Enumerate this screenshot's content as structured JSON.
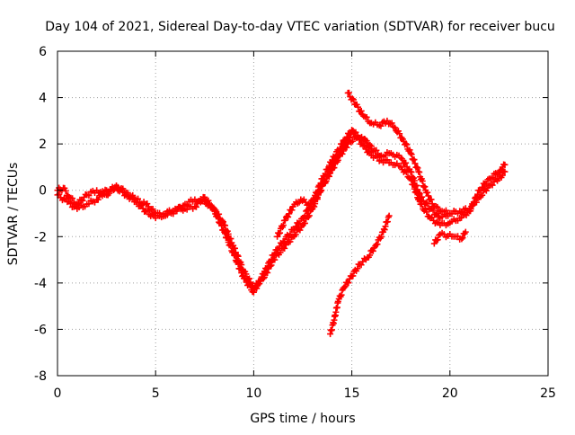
{
  "chart_data": {
    "type": "scatter",
    "title": "Day 104 of 2021, Sidereal Day-to-day VTEC variation (SDTVAR) for receiver bucu",
    "xlabel": "GPS time / hours",
    "ylabel": "SDTVAR / TECUs",
    "xlim": [
      0,
      25
    ],
    "ylim": [
      -8,
      6
    ],
    "xticks": [
      0,
      5,
      10,
      15,
      20,
      25
    ],
    "yticks": [
      -8,
      -6,
      -4,
      -2,
      0,
      2,
      4,
      6
    ],
    "grid": true,
    "legend": "none",
    "marker": "+",
    "color": "#ff0000",
    "series": [
      {
        "x": [
          0,
          0.3,
          0.6,
          1.0,
          1.5,
          2.0,
          2.5,
          3.0,
          3.5,
          4.0,
          4.5,
          5.0,
          5.5,
          6.0,
          6.5,
          7.0,
          7.5,
          8.0,
          8.5,
          9.0,
          9.5,
          10.0,
          10.5,
          11.0,
          11.5,
          12.0,
          12.5,
          13.0,
          13.5,
          14.0,
          14.5,
          15.0,
          15.5,
          16.0,
          16.5,
          17.0,
          17.5,
          18.0,
          18.5,
          19.0,
          19.5,
          20.0,
          20.5,
          21.0,
          21.5,
          22.0,
          22.5,
          22.8
        ],
        "y": [
          0.0,
          0.1,
          -0.3,
          -0.6,
          -0.2,
          0.0,
          -0.2,
          0.2,
          -0.1,
          -0.4,
          -0.6,
          -1.0,
          -1.1,
          -0.9,
          -0.6,
          -0.4,
          -0.5,
          -0.8,
          -1.5,
          -2.5,
          -3.5,
          -4.2,
          -3.8,
          -3.0,
          -2.5,
          -2.0,
          -1.5,
          -0.8,
          0.2,
          1.0,
          1.8,
          2.5,
          2.3,
          1.8,
          1.5,
          1.6,
          1.4,
          0.8,
          -0.3,
          -0.8,
          -1.2,
          -1.0,
          -0.9,
          -0.8,
          -0.3,
          0.2,
          0.5,
          0.8
        ]
      },
      {
        "x": [
          0,
          0.5,
          1.0,
          1.5,
          2.0,
          2.5,
          3.0,
          3.5,
          4.0,
          4.5,
          5.0,
          5.5,
          6.0,
          6.5,
          7.0,
          7.5,
          8.0,
          8.5,
          9.0,
          9.5,
          10.0,
          10.5,
          11.0,
          11.5,
          12.0,
          12.5,
          13.0,
          13.5,
          14.0,
          14.5,
          15.0,
          15.5,
          16.0,
          16.5,
          17.0,
          17.5,
          18.0,
          18.5,
          19.0,
          19.5,
          20.0,
          20.5,
          21.0,
          21.5,
          22.0,
          22.5,
          22.8
        ],
        "y": [
          -0.2,
          -0.5,
          -0.8,
          -0.6,
          -0.4,
          0.0,
          0.1,
          -0.2,
          -0.5,
          -0.9,
          -1.2,
          -1.0,
          -0.8,
          -0.8,
          -0.7,
          -0.3,
          -0.9,
          -1.8,
          -2.8,
          -3.8,
          -4.4,
          -3.6,
          -2.8,
          -2.2,
          -1.7,
          -1.2,
          -0.5,
          0.5,
          1.3,
          2.0,
          2.6,
          2.0,
          1.5,
          1.3,
          1.2,
          1.0,
          0.5,
          -0.6,
          -1.2,
          -1.5,
          -1.4,
          -1.2,
          -0.9,
          0.0,
          0.5,
          0.8,
          1.1
        ]
      },
      {
        "x": [
          14.8,
          15.2,
          15.6,
          16.0,
          16.4,
          16.8,
          17.2,
          17.6,
          18.0,
          18.4,
          18.8,
          19.2,
          19.6,
          20.0
        ],
        "y": [
          4.2,
          3.7,
          3.2,
          2.9,
          2.8,
          3.0,
          2.7,
          2.2,
          1.6,
          0.8,
          -0.1,
          -0.7,
          -0.9,
          -1.0
        ]
      },
      {
        "x": [
          11.2,
          11.6,
          12.0,
          12.4,
          12.8,
          13.2,
          13.6,
          14.0,
          14.4,
          14.8,
          15.2,
          15.6,
          16.0
        ],
        "y": [
          -2.0,
          -1.3,
          -0.7,
          -0.4,
          -0.6,
          -0.3,
          0.3,
          0.9,
          1.5,
          2.0,
          2.3,
          2.2,
          1.9
        ]
      },
      {
        "x": [
          13.9,
          14.1,
          14.3,
          14.6,
          15.0,
          15.4,
          15.8,
          16.2,
          16.6,
          16.9
        ],
        "y": [
          -6.2,
          -5.6,
          -4.8,
          -4.2,
          -3.7,
          -3.2,
          -2.9,
          -2.4,
          -1.8,
          -1.1
        ]
      },
      {
        "x": [
          19.2,
          19.5,
          20.2,
          20.6,
          20.8
        ],
        "y": [
          -2.3,
          -1.9,
          -2.0,
          -2.1,
          -1.8
        ]
      }
    ]
  }
}
